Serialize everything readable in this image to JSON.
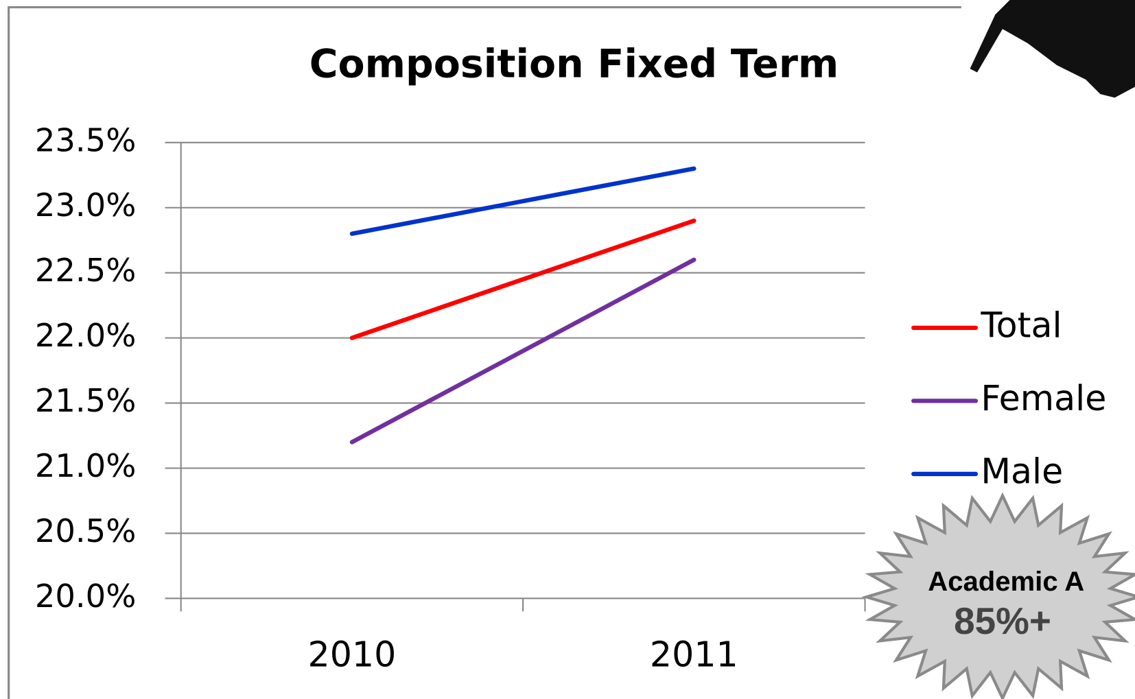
{
  "chart_data": {
    "type": "line",
    "title": "Composition Fixed Term",
    "categories": [
      "2010",
      "2011"
    ],
    "series": [
      {
        "name": "Total",
        "color": "#ff0000",
        "values": [
          22.0,
          22.9
        ]
      },
      {
        "name": "Female",
        "color": "#7030a0",
        "values": [
          21.2,
          22.6
        ]
      },
      {
        "name": "Male",
        "color": "#0033cc",
        "values": [
          22.8,
          23.3
        ]
      }
    ],
    "ylim": [
      20.0,
      23.5
    ],
    "yticks": [
      {
        "value": 20.0,
        "label": "20.0%"
      },
      {
        "value": 20.5,
        "label": "20.5%"
      },
      {
        "value": 21.0,
        "label": "21.0%"
      },
      {
        "value": 21.5,
        "label": "21.5%"
      },
      {
        "value": 22.0,
        "label": "22.0%"
      },
      {
        "value": 22.5,
        "label": "22.5%"
      },
      {
        "value": 23.0,
        "label": "23.0%"
      },
      {
        "value": 23.5,
        "label": "23.5%"
      }
    ],
    "grid": true,
    "legend": "right",
    "annotations": [
      "Academic A",
      "85%+"
    ]
  }
}
